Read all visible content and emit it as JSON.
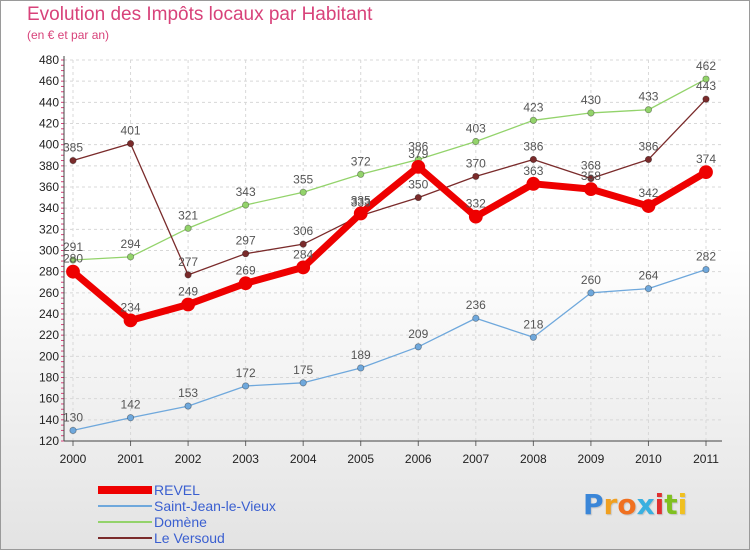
{
  "title": "Evolution des Impôts locaux par Habitant",
  "subtitle": "(en € et par an)",
  "logo": {
    "letters": [
      "P",
      "r",
      "o",
      "x",
      "i",
      "t",
      "i"
    ],
    "colors": [
      "#3a86d8",
      "#f0a020",
      "#f07020",
      "#3ab0e0",
      "#e03030",
      "#80c020",
      "#f0c020"
    ]
  },
  "legend": [
    {
      "label": "REVEL",
      "color": "#ee0000"
    },
    {
      "label": "Saint-Jean-le-Vieux",
      "color": "#6fa8dc"
    },
    {
      "label": "Domène",
      "color": "#93d36b"
    },
    {
      "label": "Le Versoud",
      "color": "#7a2b2b"
    }
  ],
  "chart_data": {
    "type": "line",
    "title": "Evolution des Impôts locaux par Habitant",
    "subtitle": "(en € et par an)",
    "xlabel": "",
    "ylabel": "",
    "ylim": [
      120,
      480
    ],
    "y_ticks": [
      120,
      140,
      160,
      180,
      200,
      220,
      240,
      260,
      280,
      300,
      320,
      340,
      360,
      380,
      400,
      420,
      440,
      460,
      480
    ],
    "grid": true,
    "legend_position": "bottom-left",
    "categories": [
      "2000",
      "2001",
      "2002",
      "2003",
      "2004",
      "2005",
      "2006",
      "2007",
      "2008",
      "2009",
      "2010",
      "2011"
    ],
    "series": [
      {
        "name": "Saint-Jean-le-Vieux",
        "color": "#6fa8dc",
        "values": [
          130,
          142,
          153,
          172,
          175,
          189,
          209,
          236,
          218,
          260,
          264,
          282
        ]
      },
      {
        "name": "Domène",
        "color": "#93d36b",
        "values": [
          291,
          294,
          321,
          343,
          355,
          372,
          386,
          403,
          423,
          430,
          433,
          462
        ]
      },
      {
        "name": "Le Versoud",
        "color": "#7a2b2b",
        "values": [
          385,
          401,
          277,
          297,
          306,
          333,
          350,
          370,
          386,
          368,
          386,
          443
        ]
      },
      {
        "name": "REVEL",
        "color": "#ee0000",
        "values": [
          280,
          234,
          249,
          269,
          284,
          335,
          379,
          332,
          363,
          358,
          342,
          374
        ]
      }
    ]
  }
}
